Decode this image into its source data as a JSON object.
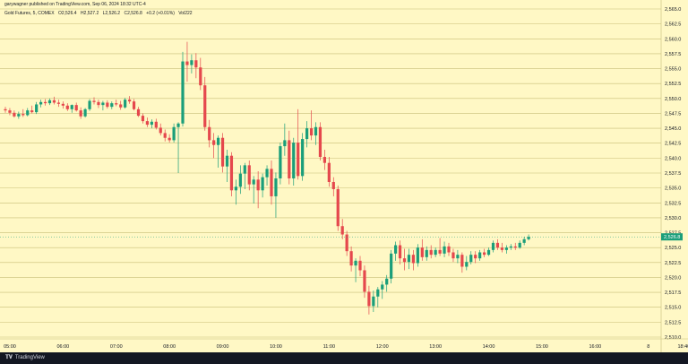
{
  "header": {
    "publisher_line": "garywagner published on TradingView.com, Sep 06, 2024 18:32 UTC-4",
    "symbol": "Gold Futures, 5, COMEX",
    "open": "O2,526.4",
    "high": "H2,527.2",
    "low": "L2,526.2",
    "close": "C2,526.8",
    "change": "+0.2 (+0.01%)",
    "volume": "Vol222"
  },
  "footer": {
    "brand": "TradingView"
  },
  "colors": {
    "background": "#FFF8C5",
    "grid": "#C8BE78",
    "up": "#1A9E7A",
    "down": "#E5484D",
    "text": "#131722",
    "price_tag": "#1A9E7A"
  },
  "chart_data": {
    "type": "candlestick",
    "timeframe_minutes": 5,
    "ylim": [
      2510.0,
      2565.0
    ],
    "y_ticks": [
      "2,510.0",
      "2,512.5",
      "2,515.0",
      "2,517.5",
      "2,520.0",
      "2,522.5",
      "2,525.0",
      "2,527.5",
      "2,530.0",
      "2,532.5",
      "2,535.0",
      "2,537.5",
      "2,540.0",
      "2,542.5",
      "2,545.0",
      "2,547.5",
      "2,550.0",
      "2,552.5",
      "2,555.0",
      "2,557.5",
      "2,560.0",
      "2,562.5",
      "2,565.0"
    ],
    "x_ticks": [
      "05:00",
      "06:00",
      "07:00",
      "08:00",
      "09:00",
      "10:00",
      "11:00",
      "12:00",
      "13:00",
      "14:00",
      "15:00",
      "16:00",
      "8",
      "18:40"
    ],
    "last_price": "2,526.8",
    "candles": [
      {
        "t": "04:55",
        "o": 2548.2,
        "h": 2548.6,
        "l": 2547.6,
        "c": 2548.0
      },
      {
        "t": "05:00",
        "o": 2548.0,
        "h": 2548.4,
        "l": 2547.2,
        "c": 2547.6
      },
      {
        "t": "05:05",
        "o": 2547.6,
        "h": 2548.0,
        "l": 2546.8,
        "c": 2547.0
      },
      {
        "t": "05:10",
        "o": 2547.0,
        "h": 2547.8,
        "l": 2546.6,
        "c": 2547.4
      },
      {
        "t": "05:15",
        "o": 2547.4,
        "h": 2548.2,
        "l": 2546.9,
        "c": 2547.2
      },
      {
        "t": "05:20",
        "o": 2547.2,
        "h": 2548.4,
        "l": 2547.0,
        "c": 2548.0
      },
      {
        "t": "05:25",
        "o": 2548.0,
        "h": 2548.8,
        "l": 2547.5,
        "c": 2547.7
      },
      {
        "t": "05:30",
        "o": 2547.7,
        "h": 2549.4,
        "l": 2547.4,
        "c": 2549.0
      },
      {
        "t": "05:35",
        "o": 2549.0,
        "h": 2549.8,
        "l": 2548.5,
        "c": 2549.4
      },
      {
        "t": "05:40",
        "o": 2549.4,
        "h": 2549.9,
        "l": 2548.8,
        "c": 2549.2
      },
      {
        "t": "05:45",
        "o": 2549.2,
        "h": 2550.0,
        "l": 2548.9,
        "c": 2549.7
      },
      {
        "t": "05:50",
        "o": 2549.7,
        "h": 2550.3,
        "l": 2549.0,
        "c": 2549.3
      },
      {
        "t": "05:55",
        "o": 2549.3,
        "h": 2549.8,
        "l": 2548.6,
        "c": 2549.1
      },
      {
        "t": "06:00",
        "o": 2549.1,
        "h": 2549.5,
        "l": 2548.3,
        "c": 2548.8
      },
      {
        "t": "06:05",
        "o": 2548.8,
        "h": 2549.2,
        "l": 2547.9,
        "c": 2548.2
      },
      {
        "t": "06:10",
        "o": 2548.2,
        "h": 2549.0,
        "l": 2547.6,
        "c": 2548.9
      },
      {
        "t": "06:15",
        "o": 2548.9,
        "h": 2549.3,
        "l": 2547.8,
        "c": 2548.0
      },
      {
        "t": "06:20",
        "o": 2548.0,
        "h": 2548.5,
        "l": 2546.6,
        "c": 2547.0
      },
      {
        "t": "06:25",
        "o": 2547.0,
        "h": 2548.4,
        "l": 2546.8,
        "c": 2548.2
      },
      {
        "t": "06:30",
        "o": 2548.2,
        "h": 2549.9,
        "l": 2547.9,
        "c": 2549.6
      },
      {
        "t": "06:35",
        "o": 2549.6,
        "h": 2550.2,
        "l": 2549.0,
        "c": 2549.4
      },
      {
        "t": "06:40",
        "o": 2549.4,
        "h": 2549.8,
        "l": 2548.4,
        "c": 2548.9
      },
      {
        "t": "06:45",
        "o": 2548.9,
        "h": 2549.6,
        "l": 2548.0,
        "c": 2549.3
      },
      {
        "t": "06:50",
        "o": 2549.3,
        "h": 2549.7,
        "l": 2548.3,
        "c": 2548.6
      },
      {
        "t": "06:55",
        "o": 2548.6,
        "h": 2549.5,
        "l": 2548.2,
        "c": 2549.2
      },
      {
        "t": "07:00",
        "o": 2549.2,
        "h": 2549.8,
        "l": 2548.7,
        "c": 2549.0
      },
      {
        "t": "07:05",
        "o": 2549.0,
        "h": 2549.6,
        "l": 2548.1,
        "c": 2548.5
      },
      {
        "t": "07:10",
        "o": 2548.5,
        "h": 2550.1,
        "l": 2548.3,
        "c": 2549.8
      },
      {
        "t": "07:15",
        "o": 2549.8,
        "h": 2550.4,
        "l": 2549.1,
        "c": 2549.5
      },
      {
        "t": "07:20",
        "o": 2549.5,
        "h": 2549.9,
        "l": 2548.0,
        "c": 2548.2
      },
      {
        "t": "07:25",
        "o": 2548.2,
        "h": 2548.6,
        "l": 2546.9,
        "c": 2547.1
      },
      {
        "t": "07:30",
        "o": 2547.1,
        "h": 2547.5,
        "l": 2545.8,
        "c": 2546.2
      },
      {
        "t": "07:35",
        "o": 2546.2,
        "h": 2546.8,
        "l": 2545.2,
        "c": 2545.6
      },
      {
        "t": "07:40",
        "o": 2545.6,
        "h": 2546.5,
        "l": 2545.0,
        "c": 2546.1
      },
      {
        "t": "07:45",
        "o": 2546.1,
        "h": 2546.6,
        "l": 2544.8,
        "c": 2545.1
      },
      {
        "t": "07:50",
        "o": 2545.1,
        "h": 2545.8,
        "l": 2543.8,
        "c": 2544.2
      },
      {
        "t": "07:55",
        "o": 2544.2,
        "h": 2544.8,
        "l": 2542.8,
        "c": 2543.4
      },
      {
        "t": "08:00",
        "o": 2543.4,
        "h": 2544.0,
        "l": 2542.6,
        "c": 2543.0
      },
      {
        "t": "08:05",
        "o": 2543.0,
        "h": 2545.8,
        "l": 2542.6,
        "c": 2545.2
      },
      {
        "t": "08:10",
        "o": 2545.2,
        "h": 2546.0,
        "l": 2537.5,
        "c": 2545.8
      },
      {
        "t": "08:15",
        "o": 2545.8,
        "h": 2557.8,
        "l": 2545.3,
        "c": 2556.2
      },
      {
        "t": "08:20",
        "o": 2556.2,
        "h": 2559.5,
        "l": 2552.8,
        "c": 2555.6
      },
      {
        "t": "08:25",
        "o": 2555.6,
        "h": 2557.4,
        "l": 2554.2,
        "c": 2556.4
      },
      {
        "t": "08:30",
        "o": 2556.4,
        "h": 2557.6,
        "l": 2553.4,
        "c": 2555.2
      },
      {
        "t": "08:35",
        "o": 2555.2,
        "h": 2556.8,
        "l": 2551.4,
        "c": 2552.2
      },
      {
        "t": "08:40",
        "o": 2552.2,
        "h": 2553.6,
        "l": 2544.6,
        "c": 2545.2
      },
      {
        "t": "08:45",
        "o": 2545.2,
        "h": 2546.4,
        "l": 2541.8,
        "c": 2543.0
      },
      {
        "t": "08:50",
        "o": 2543.0,
        "h": 2544.2,
        "l": 2540.0,
        "c": 2542.2
      },
      {
        "t": "08:55",
        "o": 2542.2,
        "h": 2543.8,
        "l": 2538.4,
        "c": 2543.4
      },
      {
        "t": "09:00",
        "o": 2543.4,
        "h": 2544.2,
        "l": 2537.6,
        "c": 2538.6
      },
      {
        "t": "09:05",
        "o": 2538.6,
        "h": 2541.4,
        "l": 2536.0,
        "c": 2540.4
      },
      {
        "t": "09:10",
        "o": 2540.4,
        "h": 2541.0,
        "l": 2533.6,
        "c": 2534.6
      },
      {
        "t": "09:15",
        "o": 2534.6,
        "h": 2536.4,
        "l": 2532.2,
        "c": 2535.2
      },
      {
        "t": "09:20",
        "o": 2535.2,
        "h": 2538.8,
        "l": 2534.0,
        "c": 2537.4
      },
      {
        "t": "09:25",
        "o": 2537.4,
        "h": 2539.2,
        "l": 2534.8,
        "c": 2538.8
      },
      {
        "t": "09:30",
        "o": 2538.8,
        "h": 2539.6,
        "l": 2534.6,
        "c": 2535.6
      },
      {
        "t": "09:35",
        "o": 2535.6,
        "h": 2537.0,
        "l": 2532.4,
        "c": 2536.4
      },
      {
        "t": "09:40",
        "o": 2536.4,
        "h": 2537.8,
        "l": 2531.6,
        "c": 2534.6
      },
      {
        "t": "09:45",
        "o": 2534.6,
        "h": 2537.4,
        "l": 2533.4,
        "c": 2536.8
      },
      {
        "t": "09:50",
        "o": 2536.8,
        "h": 2538.8,
        "l": 2535.4,
        "c": 2538.2
      },
      {
        "t": "09:55",
        "o": 2538.2,
        "h": 2539.6,
        "l": 2532.2,
        "c": 2533.6
      },
      {
        "t": "10:00",
        "o": 2533.6,
        "h": 2537.6,
        "l": 2530.0,
        "c": 2536.6
      },
      {
        "t": "10:05",
        "o": 2536.6,
        "h": 2542.6,
        "l": 2535.6,
        "c": 2542.0
      },
      {
        "t": "10:10",
        "o": 2542.0,
        "h": 2545.8,
        "l": 2540.4,
        "c": 2543.0
      },
      {
        "t": "10:15",
        "o": 2543.0,
        "h": 2544.6,
        "l": 2535.6,
        "c": 2536.6
      },
      {
        "t": "10:20",
        "o": 2536.6,
        "h": 2543.4,
        "l": 2535.4,
        "c": 2542.6
      },
      {
        "t": "10:25",
        "o": 2542.6,
        "h": 2548.2,
        "l": 2536.4,
        "c": 2537.0
      },
      {
        "t": "10:30",
        "o": 2537.0,
        "h": 2544.2,
        "l": 2536.2,
        "c": 2543.2
      },
      {
        "t": "10:35",
        "o": 2543.2,
        "h": 2546.2,
        "l": 2541.8,
        "c": 2545.0
      },
      {
        "t": "10:40",
        "o": 2545.0,
        "h": 2548.0,
        "l": 2543.0,
        "c": 2543.8
      },
      {
        "t": "10:45",
        "o": 2543.8,
        "h": 2546.0,
        "l": 2542.2,
        "c": 2545.2
      },
      {
        "t": "10:50",
        "o": 2545.2,
        "h": 2546.0,
        "l": 2539.6,
        "c": 2540.2
      },
      {
        "t": "10:55",
        "o": 2540.2,
        "h": 2541.4,
        "l": 2538.0,
        "c": 2539.2
      },
      {
        "t": "11:00",
        "o": 2539.2,
        "h": 2540.2,
        "l": 2535.2,
        "c": 2536.0
      },
      {
        "t": "11:05",
        "o": 2536.0,
        "h": 2536.8,
        "l": 2533.6,
        "c": 2534.8
      },
      {
        "t": "11:10",
        "o": 2534.8,
        "h": 2535.4,
        "l": 2527.8,
        "c": 2528.6
      },
      {
        "t": "11:15",
        "o": 2528.6,
        "h": 2529.8,
        "l": 2526.4,
        "c": 2527.2
      },
      {
        "t": "11:20",
        "o": 2527.2,
        "h": 2527.8,
        "l": 2523.6,
        "c": 2524.4
      },
      {
        "t": "11:25",
        "o": 2524.4,
        "h": 2525.2,
        "l": 2521.0,
        "c": 2522.0
      },
      {
        "t": "11:30",
        "o": 2522.0,
        "h": 2523.2,
        "l": 2519.2,
        "c": 2522.8
      },
      {
        "t": "11:35",
        "o": 2522.8,
        "h": 2523.6,
        "l": 2520.2,
        "c": 2521.2
      },
      {
        "t": "11:40",
        "o": 2521.2,
        "h": 2522.0,
        "l": 2516.6,
        "c": 2517.6
      },
      {
        "t": "11:45",
        "o": 2517.6,
        "h": 2518.6,
        "l": 2513.8,
        "c": 2515.2
      },
      {
        "t": "11:50",
        "o": 2515.2,
        "h": 2517.8,
        "l": 2514.2,
        "c": 2516.8
      },
      {
        "t": "11:55",
        "o": 2516.8,
        "h": 2518.4,
        "l": 2515.0,
        "c": 2518.0
      },
      {
        "t": "12:00",
        "o": 2518.0,
        "h": 2519.4,
        "l": 2516.4,
        "c": 2518.8
      },
      {
        "t": "12:05",
        "o": 2518.8,
        "h": 2520.4,
        "l": 2517.6,
        "c": 2519.8
      },
      {
        "t": "12:10",
        "o": 2519.8,
        "h": 2524.6,
        "l": 2519.0,
        "c": 2524.0
      },
      {
        "t": "12:15",
        "o": 2524.0,
        "h": 2526.0,
        "l": 2522.8,
        "c": 2525.4
      },
      {
        "t": "12:20",
        "o": 2525.4,
        "h": 2526.2,
        "l": 2522.2,
        "c": 2523.2
      },
      {
        "t": "12:25",
        "o": 2523.2,
        "h": 2524.8,
        "l": 2521.2,
        "c": 2522.6
      },
      {
        "t": "12:30",
        "o": 2522.6,
        "h": 2524.8,
        "l": 2521.4,
        "c": 2523.8
      },
      {
        "t": "12:35",
        "o": 2523.8,
        "h": 2524.6,
        "l": 2521.2,
        "c": 2522.4
      },
      {
        "t": "12:40",
        "o": 2522.4,
        "h": 2525.6,
        "l": 2521.8,
        "c": 2525.0
      },
      {
        "t": "12:45",
        "o": 2525.0,
        "h": 2526.4,
        "l": 2522.8,
        "c": 2523.4
      },
      {
        "t": "12:50",
        "o": 2523.4,
        "h": 2525.2,
        "l": 2522.8,
        "c": 2524.6
      },
      {
        "t": "12:55",
        "o": 2524.6,
        "h": 2525.4,
        "l": 2523.2,
        "c": 2523.8
      },
      {
        "t": "13:00",
        "o": 2523.8,
        "h": 2525.0,
        "l": 2523.4,
        "c": 2524.6
      },
      {
        "t": "13:05",
        "o": 2524.6,
        "h": 2526.6,
        "l": 2523.6,
        "c": 2524.0
      },
      {
        "t": "13:10",
        "o": 2524.0,
        "h": 2526.0,
        "l": 2523.4,
        "c": 2525.2
      },
      {
        "t": "13:15",
        "o": 2525.2,
        "h": 2525.8,
        "l": 2523.6,
        "c": 2524.2
      },
      {
        "t": "13:20",
        "o": 2524.2,
        "h": 2524.8,
        "l": 2522.6,
        "c": 2523.2
      },
      {
        "t": "13:25",
        "o": 2523.2,
        "h": 2524.6,
        "l": 2522.4,
        "c": 2523.8
      },
      {
        "t": "13:30",
        "o": 2523.8,
        "h": 2524.2,
        "l": 2520.8,
        "c": 2521.8
      },
      {
        "t": "13:35",
        "o": 2521.8,
        "h": 2523.6,
        "l": 2521.2,
        "c": 2522.6
      },
      {
        "t": "13:40",
        "o": 2522.6,
        "h": 2524.4,
        "l": 2522.2,
        "c": 2523.8
      },
      {
        "t": "13:45",
        "o": 2523.8,
        "h": 2524.4,
        "l": 2522.4,
        "c": 2523.2
      },
      {
        "t": "13:50",
        "o": 2523.2,
        "h": 2524.6,
        "l": 2522.8,
        "c": 2524.2
      },
      {
        "t": "13:55",
        "o": 2524.2,
        "h": 2524.8,
        "l": 2523.4,
        "c": 2523.8
      },
      {
        "t": "14:00",
        "o": 2523.8,
        "h": 2525.0,
        "l": 2523.6,
        "c": 2524.6
      },
      {
        "t": "14:05",
        "o": 2524.6,
        "h": 2526.2,
        "l": 2524.2,
        "c": 2525.8
      },
      {
        "t": "14:10",
        "o": 2525.8,
        "h": 2526.4,
        "l": 2524.6,
        "c": 2525.0
      },
      {
        "t": "14:15",
        "o": 2525.0,
        "h": 2525.8,
        "l": 2524.2,
        "c": 2524.6
      },
      {
        "t": "14:20",
        "o": 2524.6,
        "h": 2525.4,
        "l": 2524.0,
        "c": 2525.0
      },
      {
        "t": "14:25",
        "o": 2525.0,
        "h": 2525.6,
        "l": 2524.6,
        "c": 2525.2
      },
      {
        "t": "14:30",
        "o": 2525.2,
        "h": 2525.8,
        "l": 2524.6,
        "c": 2525.0
      },
      {
        "t": "14:35",
        "o": 2525.0,
        "h": 2526.2,
        "l": 2524.8,
        "c": 2525.8
      },
      {
        "t": "14:40",
        "o": 2525.8,
        "h": 2526.8,
        "l": 2525.4,
        "c": 2526.4
      },
      {
        "t": "14:45",
        "o": 2526.4,
        "h": 2527.2,
        "l": 2526.2,
        "c": 2526.8
      }
    ]
  }
}
